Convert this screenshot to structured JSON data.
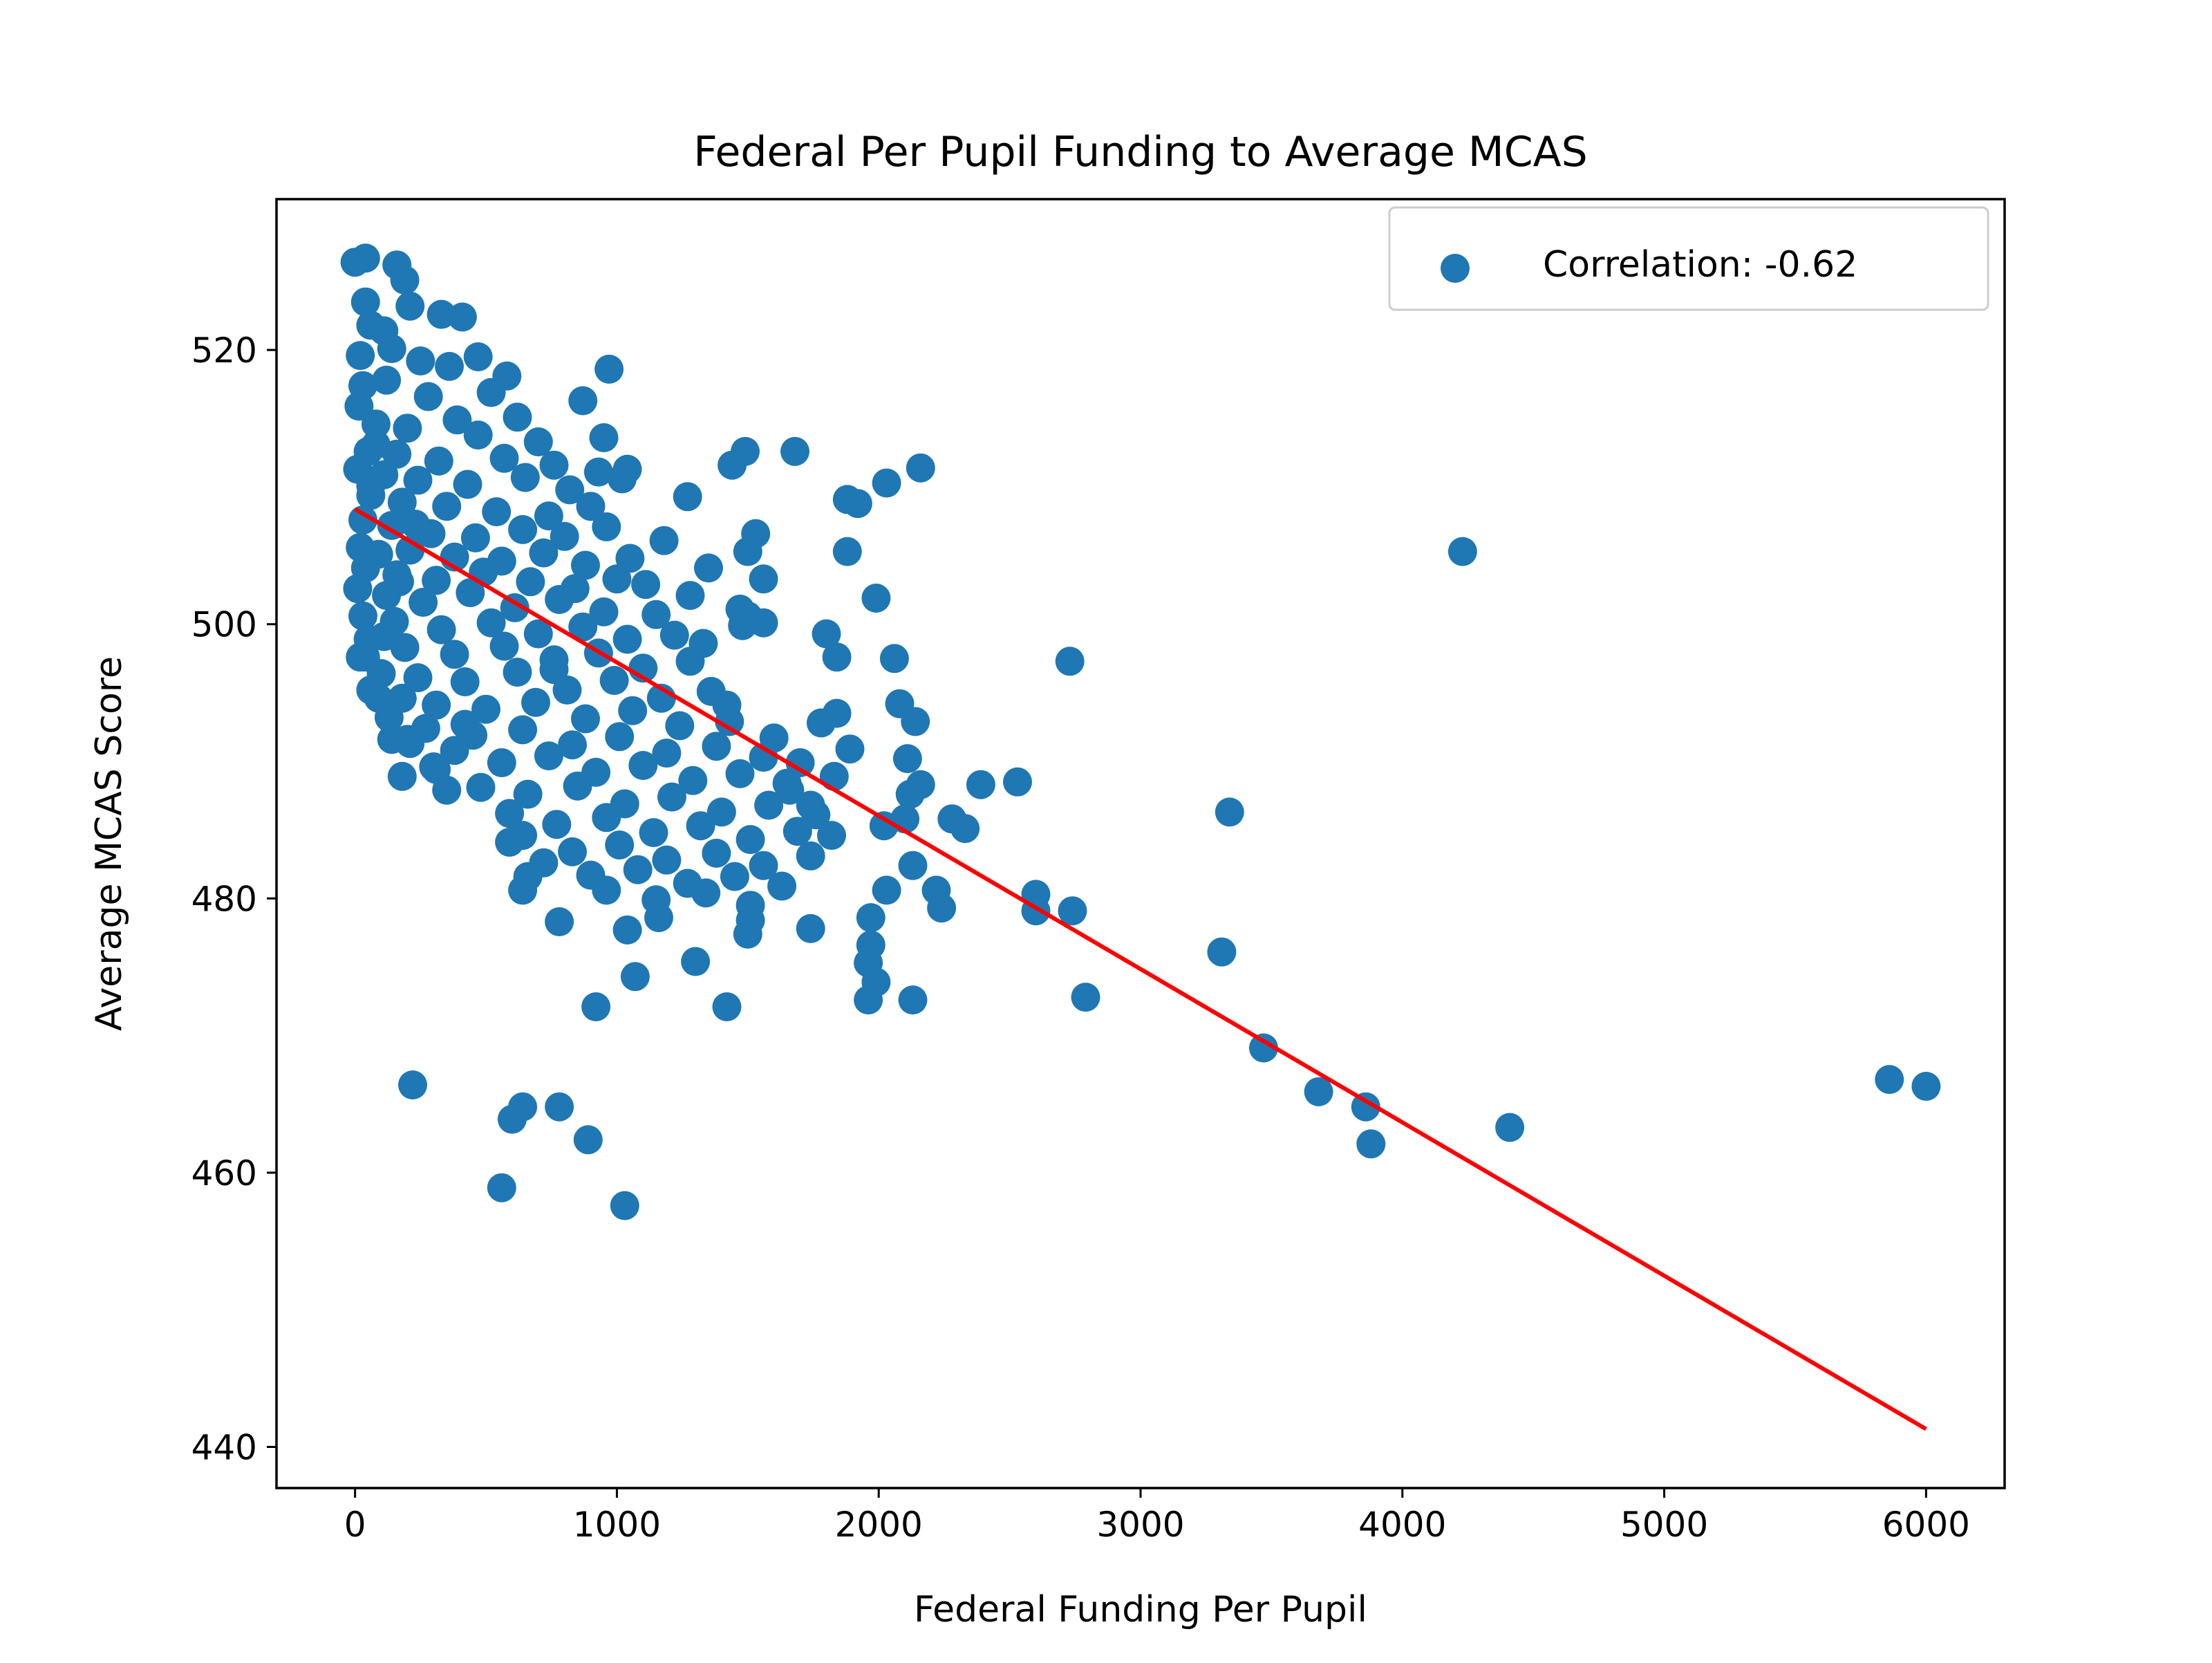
{
  "chart_data": {
    "type": "scatter",
    "title": "Federal Per Pupil Funding to Average MCAS",
    "xlabel": "Federal Funding Per Pupil",
    "ylabel": "Average MCAS Score",
    "xlim": [
      -300,
      6300
    ],
    "ylim": [
      437,
      531
    ],
    "xticks": [
      0,
      1000,
      2000,
      3000,
      4000,
      5000,
      6000
    ],
    "yticks": [
      440,
      460,
      480,
      500,
      520
    ],
    "grid": false,
    "legend": {
      "position": "top-right",
      "entries": [
        "Correlation: -0.62"
      ]
    },
    "colors": {
      "points": "#1f77b4",
      "trend": "#ff0000"
    },
    "series": [
      {
        "name": "Correlation: -0.62",
        "kind": "scatter",
        "points": [
          [
            0,
            526.4
          ],
          [
            40,
            526.7
          ],
          [
            160,
            526.2
          ],
          [
            190,
            525.1
          ],
          [
            40,
            523.5
          ],
          [
            210,
            523.2
          ],
          [
            60,
            521.8
          ],
          [
            110,
            521.4
          ],
          [
            330,
            522.6
          ],
          [
            410,
            522.4
          ],
          [
            20,
            519.6
          ],
          [
            140,
            520.1
          ],
          [
            250,
            519.2
          ],
          [
            360,
            518.8
          ],
          [
            470,
            519.5
          ],
          [
            580,
            518.1
          ],
          [
            30,
            517.4
          ],
          [
            120,
            517.8
          ],
          [
            280,
            516.6
          ],
          [
            520,
            516.9
          ],
          [
            620,
            515.1
          ],
          [
            15,
            515.9
          ],
          [
            80,
            514.6
          ],
          [
            200,
            514.3
          ],
          [
            390,
            514.9
          ],
          [
            470,
            513.8
          ],
          [
            700,
            513.3
          ],
          [
            50,
            512.6
          ],
          [
            160,
            512.4
          ],
          [
            320,
            511.9
          ],
          [
            570,
            512.1
          ],
          [
            760,
            511.6
          ],
          [
            10,
            511.3
          ],
          [
            110,
            510.9
          ],
          [
            240,
            510.5
          ],
          [
            430,
            510.2
          ],
          [
            650,
            510.7
          ],
          [
            820,
            509.8
          ],
          [
            60,
            509.4
          ],
          [
            180,
            508.9
          ],
          [
            350,
            508.6
          ],
          [
            540,
            508.2
          ],
          [
            740,
            507.9
          ],
          [
            900,
            508.6
          ],
          [
            30,
            507.6
          ],
          [
            140,
            507.2
          ],
          [
            290,
            506.6
          ],
          [
            460,
            506.3
          ],
          [
            640,
            506.9
          ],
          [
            800,
            506.4
          ],
          [
            960,
            507.1
          ],
          [
            20,
            505.6
          ],
          [
            90,
            505.1
          ],
          [
            210,
            505.4
          ],
          [
            380,
            504.9
          ],
          [
            560,
            504.6
          ],
          [
            720,
            505.2
          ],
          [
            880,
            504.3
          ],
          [
            1050,
            504.8
          ],
          [
            40,
            504.1
          ],
          [
            160,
            503.6
          ],
          [
            310,
            503.2
          ],
          [
            490,
            503.8
          ],
          [
            670,
            503.1
          ],
          [
            840,
            502.6
          ],
          [
            1000,
            503.3
          ],
          [
            1110,
            502.9
          ],
          [
            10,
            502.6
          ],
          [
            120,
            502.1
          ],
          [
            260,
            501.6
          ],
          [
            440,
            502.3
          ],
          [
            610,
            501.2
          ],
          [
            780,
            501.8
          ],
          [
            950,
            500.9
          ],
          [
            1150,
            500.7
          ],
          [
            30,
            500.6
          ],
          [
            150,
            500.2
          ],
          [
            330,
            499.6
          ],
          [
            520,
            500.1
          ],
          [
            700,
            499.3
          ],
          [
            870,
            499.8
          ],
          [
            1040,
            498.9
          ],
          [
            1220,
            499.2
          ],
          [
            50,
            498.9
          ],
          [
            190,
            498.3
          ],
          [
            380,
            497.8
          ],
          [
            570,
            498.4
          ],
          [
            760,
            497.4
          ],
          [
            930,
            497.9
          ],
          [
            1100,
            496.8
          ],
          [
            1280,
            497.3
          ],
          [
            20,
            497.6
          ],
          [
            100,
            496.4
          ],
          [
            240,
            496.1
          ],
          [
            420,
            495.8
          ],
          [
            620,
            496.5
          ],
          [
            810,
            495.2
          ],
          [
            990,
            495.9
          ],
          [
            1170,
            494.6
          ],
          [
            1360,
            495.1
          ],
          [
            60,
            495.2
          ],
          [
            180,
            494.6
          ],
          [
            310,
            494.1
          ],
          [
            500,
            493.8
          ],
          [
            690,
            494.3
          ],
          [
            880,
            493.1
          ],
          [
            1060,
            493.7
          ],
          [
            1240,
            492.6
          ],
          [
            1430,
            492.9
          ],
          [
            130,
            493.2
          ],
          [
            270,
            492.4
          ],
          [
            450,
            491.9
          ],
          [
            640,
            492.3
          ],
          [
            830,
            491.2
          ],
          [
            1010,
            491.8
          ],
          [
            1190,
            490.6
          ],
          [
            1380,
            491.1
          ],
          [
            1560,
            490.3
          ],
          [
            200,
            491.6
          ],
          [
            380,
            490.8
          ],
          [
            560,
            489.9
          ],
          [
            740,
            490.4
          ],
          [
            920,
            489.2
          ],
          [
            1100,
            489.7
          ],
          [
            1290,
            488.6
          ],
          [
            1470,
            489.1
          ],
          [
            1650,
            488.4
          ],
          [
            310,
            489.4
          ],
          [
            480,
            488.1
          ],
          [
            660,
            487.6
          ],
          [
            850,
            488.2
          ],
          [
            1030,
            486.9
          ],
          [
            1210,
            487.4
          ],
          [
            1400,
            486.3
          ],
          [
            1580,
            486.8
          ],
          [
            1760,
            486.1
          ],
          [
            590,
            486.2
          ],
          [
            770,
            485.4
          ],
          [
            960,
            485.9
          ],
          [
            1140,
            484.8
          ],
          [
            1320,
            485.3
          ],
          [
            1510,
            484.3
          ],
          [
            1690,
            484.9
          ],
          [
            640,
            484.6
          ],
          [
            830,
            483.4
          ],
          [
            1010,
            483.9
          ],
          [
            1190,
            482.8
          ],
          [
            1380,
            483.3
          ],
          [
            1560,
            482.4
          ],
          [
            1740,
            483.1
          ],
          [
            720,
            482.6
          ],
          [
            900,
            481.7
          ],
          [
            1080,
            482.1
          ],
          [
            1270,
            481.1
          ],
          [
            1450,
            481.6
          ],
          [
            1630,
            480.9
          ],
          [
            960,
            480.6
          ],
          [
            1150,
            479.9
          ],
          [
            1340,
            480.4
          ],
          [
            1510,
            479.5
          ],
          [
            180,
            488.9
          ],
          [
            300,
            489.6
          ],
          [
            210,
            491.3
          ],
          [
            140,
            491.6
          ],
          [
            90,
            494.6
          ],
          [
            110,
            499.1
          ],
          [
            170,
            503.1
          ],
          [
            230,
            507.3
          ],
          [
            60,
            510.1
          ],
          [
            80,
            513.1
          ],
          [
            870,
            516.3
          ],
          [
            970,
            518.6
          ],
          [
            950,
            513.6
          ],
          [
            930,
            511.1
          ],
          [
            1040,
            511.3
          ],
          [
            1020,
            510.6
          ],
          [
            1270,
            509.3
          ],
          [
            1440,
            511.6
          ],
          [
            1490,
            512.6
          ],
          [
            1680,
            512.6
          ],
          [
            1180,
            506.1
          ],
          [
            1530,
            506.6
          ],
          [
            1500,
            505.3
          ],
          [
            1560,
            503.3
          ],
          [
            1350,
            504.1
          ],
          [
            1280,
            502.1
          ],
          [
            1470,
            501.1
          ],
          [
            1500,
            500.6
          ],
          [
            1560,
            500.1
          ],
          [
            1480,
            499.9
          ],
          [
            2030,
            510.3
          ],
          [
            2160,
            511.4
          ],
          [
            1880,
            509.1
          ],
          [
            1920,
            508.8
          ],
          [
            1880,
            505.3
          ],
          [
            1990,
            501.9
          ],
          [
            1800,
            499.3
          ],
          [
            1840,
            497.6
          ],
          [
            2060,
            497.5
          ],
          [
            1840,
            493.5
          ],
          [
            1780,
            492.8
          ],
          [
            1890,
            490.9
          ],
          [
            2080,
            494.2
          ],
          [
            2140,
            492.9
          ],
          [
            2110,
            490.2
          ],
          [
            1830,
            488.9
          ],
          [
            2160,
            488.3
          ],
          [
            2120,
            487.6
          ],
          [
            2020,
            485.3
          ],
          [
            2100,
            485.8
          ],
          [
            2130,
            482.4
          ],
          [
            2030,
            480.6
          ],
          [
            2220,
            480.6
          ],
          [
            2240,
            479.3
          ],
          [
            2280,
            485.8
          ],
          [
            2330,
            485.1
          ],
          [
            2390,
            488.3
          ],
          [
            2530,
            488.5
          ],
          [
            1970,
            478.6
          ],
          [
            1970,
            476.6
          ],
          [
            1960,
            475.3
          ],
          [
            1990,
            473.9
          ],
          [
            1960,
            472.6
          ],
          [
            2130,
            472.6
          ],
          [
            1740,
            477.8
          ],
          [
            1500,
            477.4
          ],
          [
            1510,
            478.4
          ],
          [
            1300,
            475.4
          ],
          [
            1070,
            474.3
          ],
          [
            1420,
            472.1
          ],
          [
            920,
            472.1
          ],
          [
            780,
            478.3
          ],
          [
            1040,
            477.7
          ],
          [
            1160,
            478.6
          ],
          [
            640,
            480.6
          ],
          [
            660,
            481.6
          ],
          [
            590,
            484.1
          ],
          [
            2730,
            497.3
          ],
          [
            2600,
            480.3
          ],
          [
            2600,
            479.1
          ],
          [
            2740,
            479.1
          ],
          [
            2790,
            472.8
          ],
          [
            3310,
            476.1
          ],
          [
            3340,
            486.3
          ],
          [
            3470,
            469.1
          ],
          [
            3680,
            465.9
          ],
          [
            3860,
            464.8
          ],
          [
            3880,
            462.1
          ],
          [
            4230,
            505.3
          ],
          [
            4410,
            463.3
          ],
          [
            5860,
            466.8
          ],
          [
            6000,
            466.3
          ],
          [
            220,
            466.4
          ],
          [
            640,
            464.8
          ],
          [
            600,
            463.9
          ],
          [
            780,
            464.8
          ],
          [
            890,
            462.4
          ],
          [
            560,
            458.9
          ],
          [
            1030,
            457.6
          ],
          [
            40,
            497.6
          ],
          [
            350,
            487.9
          ],
          [
            420,
            492.7
          ],
          [
            760,
            496.7
          ],
          [
            1330,
            498.6
          ],
          [
            1420,
            494.1
          ],
          [
            1600,
            491.7
          ],
          [
            1700,
            489.9
          ],
          [
            1660,
            487.9
          ],
          [
            1820,
            484.6
          ],
          [
            1740,
            486.8
          ]
        ]
      },
      {
        "name": "",
        "kind": "line",
        "points": [
          [
            0,
            508.4
          ],
          [
            6000,
            441.3
          ]
        ]
      }
    ]
  }
}
